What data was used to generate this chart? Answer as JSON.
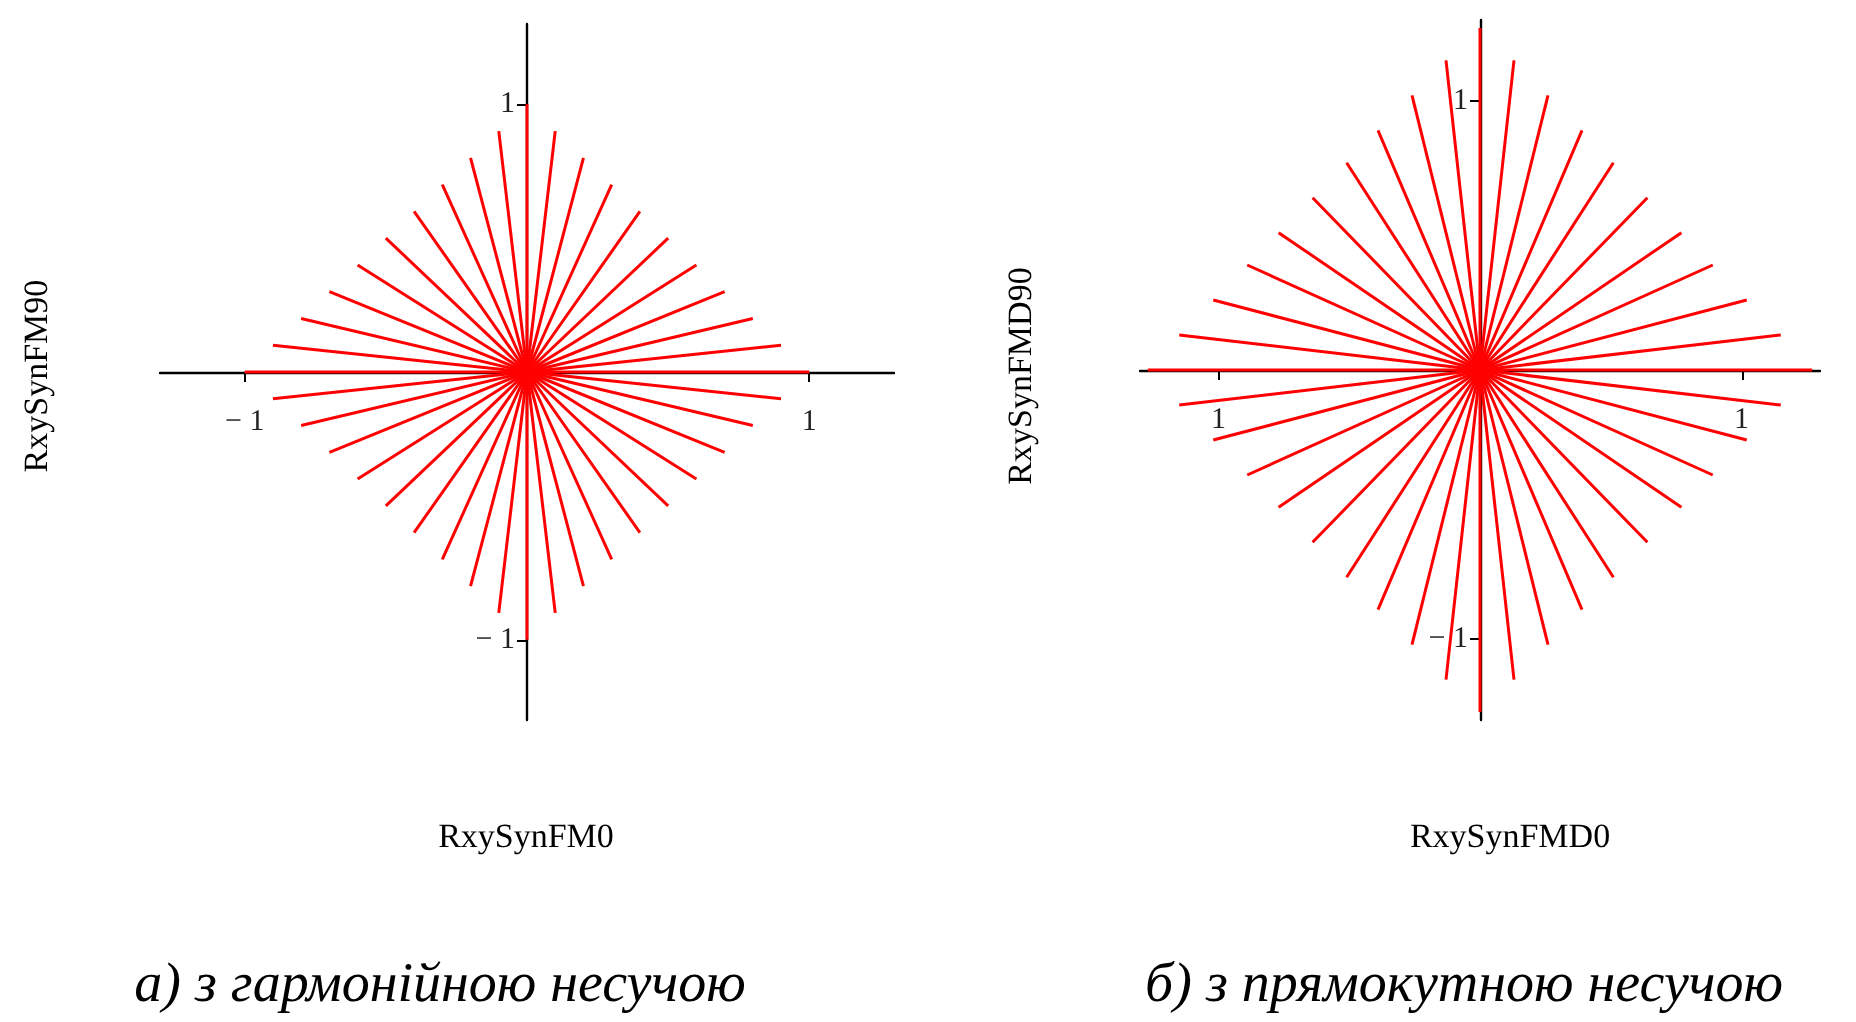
{
  "chart_data": [
    {
      "type": "line",
      "xlabel": "RxySynFM0",
      "ylabel": "RxySynFM90",
      "annotations": [
        "а) з гармонійною несучою"
      ],
      "xlim": [
        -1.3,
        1.3
      ],
      "ylim": [
        -1.3,
        1.3
      ],
      "xticks": [
        {
          "value": -1,
          "label": "− 1"
        },
        1
      ],
      "yticks": [
        {
          "value": -1,
          "label": "− 1"
        },
        1
      ],
      "grid": false,
      "marker": "none",
      "line_style": "solid",
      "series": [
        {
          "color": "#ff0000",
          "x": [
            -1,
            0,
            1
          ],
          "values": [
            0,
            0,
            0
          ]
        },
        {
          "color": "#ff0000",
          "x": [
            -0.9,
            0,
            0.9
          ],
          "values": [
            -0.1,
            0,
            0.1
          ]
        },
        {
          "color": "#ff0000",
          "x": [
            -0.8,
            0,
            0.8
          ],
          "values": [
            -0.2,
            0,
            0.2
          ]
        },
        {
          "color": "#ff0000",
          "x": [
            -0.7,
            0,
            0.7
          ],
          "values": [
            -0.3,
            0,
            0.3
          ]
        },
        {
          "color": "#ff0000",
          "x": [
            -0.6,
            0,
            0.6
          ],
          "values": [
            -0.4,
            0,
            0.4
          ]
        },
        {
          "color": "#ff0000",
          "x": [
            -0.5,
            0,
            0.5
          ],
          "values": [
            -0.5,
            0,
            0.5
          ]
        },
        {
          "color": "#ff0000",
          "x": [
            -0.4,
            0,
            0.4
          ],
          "values": [
            -0.6,
            0,
            0.6
          ]
        },
        {
          "color": "#ff0000",
          "x": [
            -0.3,
            0,
            0.3
          ],
          "values": [
            -0.7,
            0,
            0.7
          ]
        },
        {
          "color": "#ff0000",
          "x": [
            -0.2,
            0,
            0.2
          ],
          "values": [
            -0.8,
            0,
            0.8
          ]
        },
        {
          "color": "#ff0000",
          "x": [
            -0.1,
            0,
            0.1
          ],
          "values": [
            -0.9,
            0,
            0.9
          ]
        },
        {
          "color": "#ff0000",
          "x": [
            0,
            0,
            0
          ],
          "values": [
            -1,
            0,
            1
          ]
        },
        {
          "color": "#ff0000",
          "x": [
            0.1,
            0,
            -0.1
          ],
          "values": [
            -0.9,
            0,
            0.9
          ]
        },
        {
          "color": "#ff0000",
          "x": [
            0.2,
            0,
            -0.2
          ],
          "values": [
            -0.8,
            0,
            0.8
          ]
        },
        {
          "color": "#ff0000",
          "x": [
            0.3,
            0,
            -0.3
          ],
          "values": [
            -0.7,
            0,
            0.7
          ]
        },
        {
          "color": "#ff0000",
          "x": [
            0.4,
            0,
            -0.4
          ],
          "values": [
            -0.6,
            0,
            0.6
          ]
        },
        {
          "color": "#ff0000",
          "x": [
            0.5,
            0,
            -0.5
          ],
          "values": [
            -0.5,
            0,
            0.5
          ]
        },
        {
          "color": "#ff0000",
          "x": [
            0.6,
            0,
            -0.6
          ],
          "values": [
            -0.4,
            0,
            0.4
          ]
        },
        {
          "color": "#ff0000",
          "x": [
            0.7,
            0,
            -0.7
          ],
          "values": [
            -0.3,
            0,
            0.3
          ]
        },
        {
          "color": "#ff0000",
          "x": [
            0.8,
            0,
            -0.8
          ],
          "values": [
            -0.2,
            0,
            0.2
          ]
        },
        {
          "color": "#ff0000",
          "x": [
            0.9,
            0,
            -0.9
          ],
          "values": [
            -0.1,
            0,
            0.1
          ]
        }
      ]
    },
    {
      "type": "line",
      "xlabel": "RxySynFMD0",
      "ylabel": "RxySynFMD90",
      "annotations": [
        "б) з прямокутною несучою"
      ],
      "xlim": [
        -1.3,
        1.3
      ],
      "ylim": [
        -1.3,
        1.3
      ],
      "xticks": [
        {
          "value": -1,
          "label": "1"
        },
        1
      ],
      "yticks": [
        {
          "value": -1,
          "label": "− 1"
        },
        1
      ],
      "grid": false,
      "marker": "none",
      "line_style": "solid",
      "series": [
        {
          "color": "#ff0000",
          "x": [
            -1.27,
            0,
            1.27
          ],
          "values": [
            0,
            0,
            0
          ]
        },
        {
          "color": "#ff0000",
          "x": [
            -1.15,
            0,
            1.15
          ],
          "values": [
            -0.13,
            0,
            0.13
          ]
        },
        {
          "color": "#ff0000",
          "x": [
            -1.02,
            0,
            1.02
          ],
          "values": [
            -0.26,
            0,
            0.26
          ]
        },
        {
          "color": "#ff0000",
          "x": [
            -0.89,
            0,
            0.89
          ],
          "values": [
            -0.39,
            0,
            0.39
          ]
        },
        {
          "color": "#ff0000",
          "x": [
            -0.77,
            0,
            0.77
          ],
          "values": [
            -0.51,
            0,
            0.51
          ]
        },
        {
          "color": "#ff0000",
          "x": [
            -0.64,
            0,
            0.64
          ],
          "values": [
            -0.64,
            0,
            0.64
          ]
        },
        {
          "color": "#ff0000",
          "x": [
            -0.51,
            0,
            0.51
          ],
          "values": [
            -0.77,
            0,
            0.77
          ]
        },
        {
          "color": "#ff0000",
          "x": [
            -0.39,
            0,
            0.39
          ],
          "values": [
            -0.89,
            0,
            0.89
          ]
        },
        {
          "color": "#ff0000",
          "x": [
            -0.26,
            0,
            0.26
          ],
          "values": [
            -1.02,
            0,
            1.02
          ]
        },
        {
          "color": "#ff0000",
          "x": [
            -0.13,
            0,
            0.13
          ],
          "values": [
            -1.15,
            0,
            1.15
          ]
        },
        {
          "color": "#ff0000",
          "x": [
            0,
            0,
            0
          ],
          "values": [
            -1.27,
            0,
            1.27
          ]
        },
        {
          "color": "#ff0000",
          "x": [
            0.13,
            0,
            -0.13
          ],
          "values": [
            -1.15,
            0,
            1.15
          ]
        },
        {
          "color": "#ff0000",
          "x": [
            0.26,
            0,
            -0.26
          ],
          "values": [
            -1.02,
            0,
            1.02
          ]
        },
        {
          "color": "#ff0000",
          "x": [
            0.39,
            0,
            -0.39
          ],
          "values": [
            -0.89,
            0,
            0.89
          ]
        },
        {
          "color": "#ff0000",
          "x": [
            0.51,
            0,
            -0.51
          ],
          "values": [
            -0.77,
            0,
            0.77
          ]
        },
        {
          "color": "#ff0000",
          "x": [
            0.64,
            0,
            -0.64
          ],
          "values": [
            -0.64,
            0,
            0.64
          ]
        },
        {
          "color": "#ff0000",
          "x": [
            0.77,
            0,
            -0.77
          ],
          "values": [
            -0.51,
            0,
            0.51
          ]
        },
        {
          "color": "#ff0000",
          "x": [
            0.89,
            0,
            -0.89
          ],
          "values": [
            -0.39,
            0,
            0.39
          ]
        },
        {
          "color": "#ff0000",
          "x": [
            1.02,
            0,
            -1.02
          ],
          "values": [
            -0.26,
            0,
            0.26
          ]
        },
        {
          "color": "#ff0000",
          "x": [
            1.15,
            0,
            -1.15
          ],
          "values": [
            -0.13,
            0,
            0.13
          ]
        }
      ]
    }
  ]
}
